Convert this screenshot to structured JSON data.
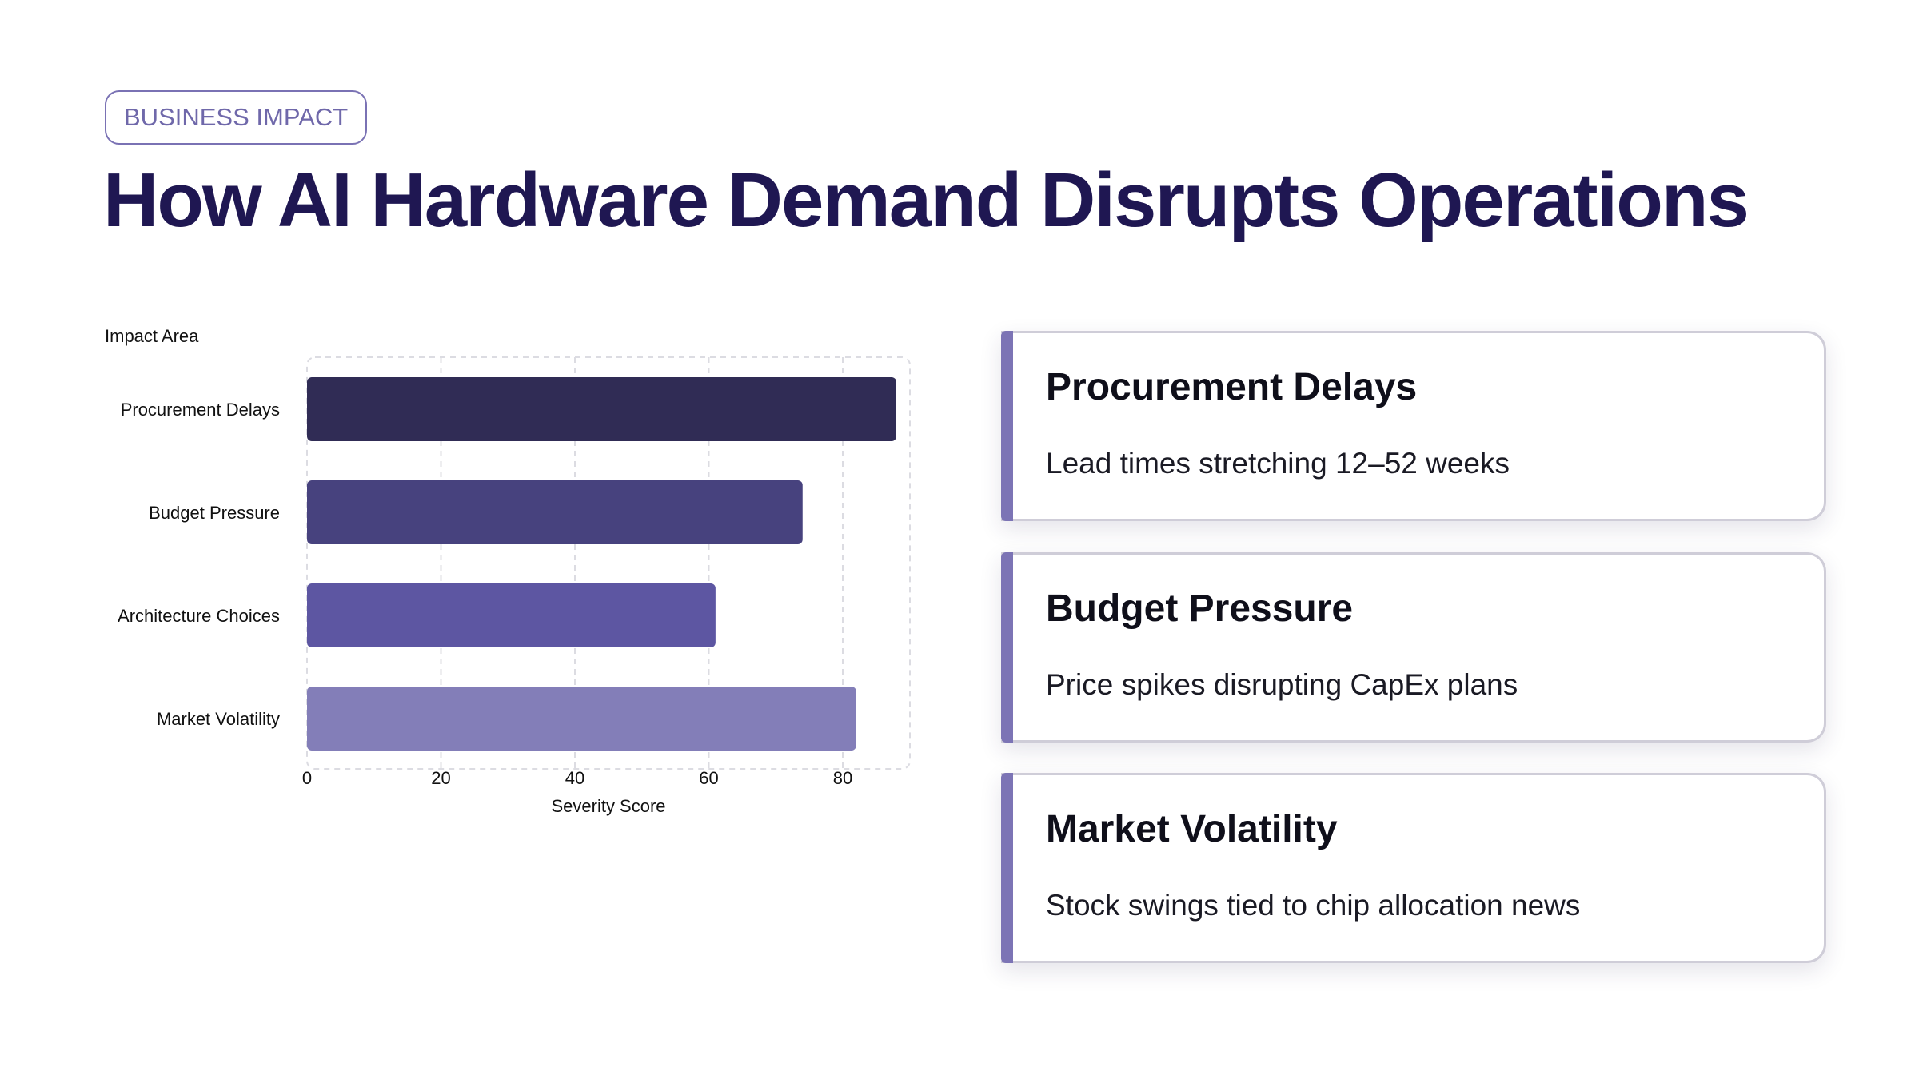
{
  "header": {
    "tag": "BUSINESS IMPACT",
    "title": "How AI Hardware Demand Disrupts Operations"
  },
  "chart_data": {
    "type": "bar",
    "orientation": "horizontal",
    "categories": [
      "Procurement Delays",
      "Budget Pressure",
      "Architecture Choices",
      "Market Volatility"
    ],
    "values": [
      88,
      74,
      61,
      82
    ],
    "xlabel": "Severity Score",
    "ylabel": "Impact Area",
    "xlim": [
      0,
      90
    ],
    "xticks": [
      0,
      20,
      40,
      60,
      80
    ],
    "grid": true,
    "colors": [
      "#302c55",
      "#47427e",
      "#5d56a2",
      "#837eb8"
    ]
  },
  "cards": [
    {
      "title": "Procurement Delays",
      "desc": "Lead times stretching 12–52 weeks"
    },
    {
      "title": "Budget Pressure",
      "desc": "Price spikes disrupting CapEx plans"
    },
    {
      "title": "Market Volatility",
      "desc": "Stock swings tied to chip allocation news"
    }
  ],
  "colors": {
    "title": "#1f1752",
    "accent": "#7c74b5",
    "tag": "#6f68aa"
  }
}
